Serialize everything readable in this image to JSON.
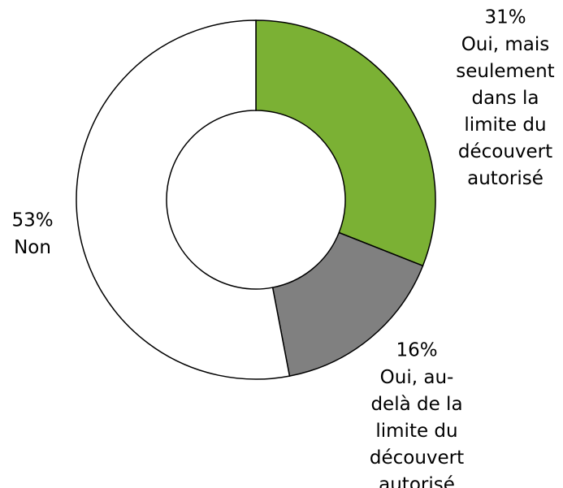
{
  "chart_data": {
    "type": "donut",
    "categories": [
      "Oui, mais seulement dans la limite du découvert autorisé",
      "Oui, au-delà de la limite du découvert autorisé",
      "Non"
    ],
    "values": [
      31,
      16,
      53
    ],
    "value_labels": [
      "31%",
      "16%",
      "53%"
    ],
    "colors": [
      "#7bb134",
      "#808080",
      "#ffffff"
    ]
  }
}
